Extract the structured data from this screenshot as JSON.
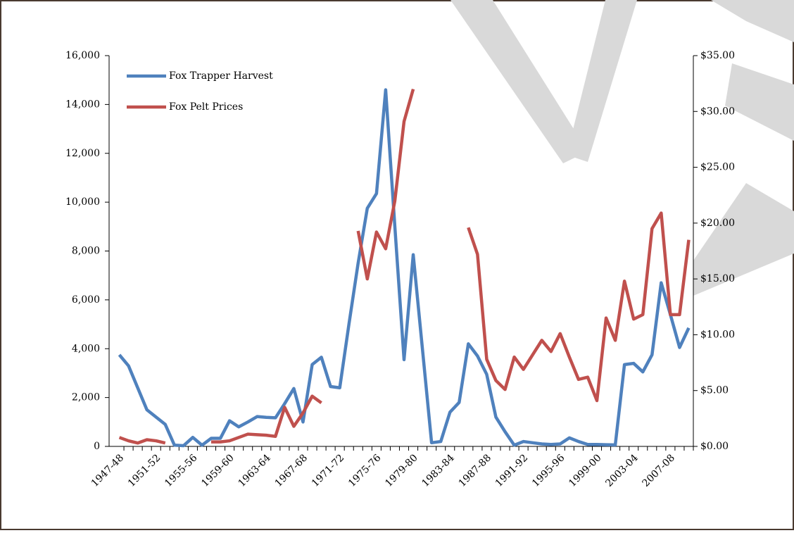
{
  "chart_data": {
    "type": "line",
    "categories": [
      "1947-48",
      null,
      null,
      null,
      "1951-52",
      null,
      null,
      null,
      "1955-56",
      null,
      null,
      null,
      "1959-60",
      null,
      null,
      null,
      "1963-64",
      null,
      null,
      null,
      "1967-68",
      null,
      null,
      null,
      "1971-72",
      null,
      null,
      null,
      "1975-76",
      null,
      null,
      null,
      "1979-80",
      null,
      null,
      null,
      "1983-84",
      null,
      null,
      null,
      "1987-88",
      null,
      null,
      null,
      "1991-92",
      null,
      null,
      null,
      "1995-96",
      null,
      null,
      null,
      "1999-00",
      null,
      null,
      null,
      "2003-04",
      null,
      null,
      null,
      "2007-08",
      null,
      null
    ],
    "series": [
      {
        "name": "Fox Trapper Harvest",
        "color": "#4f81bd",
        "axis": "y",
        "values": [
          3750,
          3300,
          2400,
          1500,
          1200,
          900,
          50,
          30,
          370,
          50,
          330,
          330,
          1050,
          800,
          1000,
          1220,
          1190,
          1170,
          1750,
          2370,
          1000,
          3350,
          3650,
          2450,
          2400,
          5000,
          7500,
          9750,
          10350,
          14600,
          9000,
          3550,
          7850,
          4000,
          150,
          200,
          1400,
          1800,
          4200,
          3700,
          2950,
          1200,
          600,
          50,
          200,
          150,
          100,
          80,
          100,
          350,
          200,
          80,
          80,
          70,
          60,
          3350,
          3400,
          3050,
          3750,
          6700,
          5400,
          4050,
          4850
        ]
      },
      {
        "name": "Fox Pelt Prices",
        "color": "#c0504d",
        "axis": "y2",
        "values": [
          0.8,
          0.5,
          0.3,
          0.6,
          0.5,
          0.3,
          null,
          null,
          null,
          null,
          0.4,
          0.4,
          0.5,
          0.8,
          1.1,
          1.05,
          1.0,
          0.9,
          3.5,
          1.8,
          3.0,
          4.5,
          3.9,
          null,
          null,
          null,
          19.3,
          15.0,
          19.2,
          17.7,
          22.0,
          29.1,
          32.0,
          null,
          null,
          null,
          null,
          null,
          19.6,
          17.2,
          7.8,
          5.9,
          5.1,
          8.0,
          6.9,
          8.2,
          9.5,
          8.5,
          10.1,
          8.0,
          6.0,
          6.2,
          4.1,
          11.5,
          9.5,
          14.8,
          11.4,
          11.8,
          19.5,
          20.9,
          11.8,
          11.8,
          18.5
        ]
      }
    ],
    "ylim": [
      0,
      16000
    ],
    "yticks": [
      0,
      {
        "value": 2000,
        "label": "2,000"
      },
      {
        "value": 4000,
        "label": "4,000"
      },
      {
        "value": 6000,
        "label": "6,000"
      },
      {
        "value": 8000,
        "label": "8,000"
      },
      {
        "value": 10000,
        "label": "10,000"
      },
      {
        "value": 12000,
        "label": "12,000"
      },
      {
        "value": 14000,
        "label": "14,000"
      },
      {
        "value": 16000,
        "label": "16,000"
      }
    ],
    "y2lim": [
      0,
      35
    ],
    "y2ticks": [
      {
        "value": 0,
        "label": "$0.00"
      },
      {
        "value": 5,
        "label": "$5.00"
      },
      {
        "value": 10,
        "label": "$10.00"
      },
      {
        "value": 15,
        "label": "$15.00"
      },
      {
        "value": 20,
        "label": "$20.00"
      },
      {
        "value": 25,
        "label": "$25.00"
      },
      {
        "value": 30,
        "label": "$30.00"
      },
      {
        "value": 35,
        "label": "$35.00"
      }
    ],
    "legend": "top-left",
    "grid": false
  }
}
